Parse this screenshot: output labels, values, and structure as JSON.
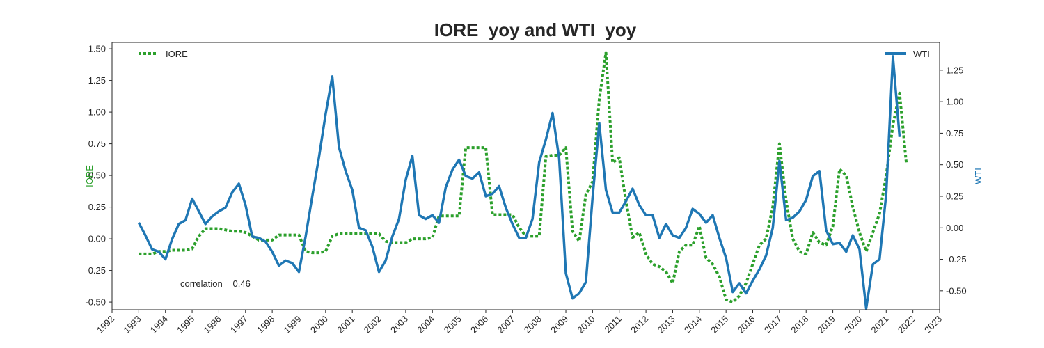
{
  "chart_data": {
    "type": "line",
    "title": "IORE_yoy and WTI_yoy",
    "x_ticks": [
      "1992",
      "1993",
      "1994",
      "1995",
      "1996",
      "1997",
      "1998",
      "1999",
      "2000",
      "2001",
      "2002",
      "2003",
      "2004",
      "2005",
      "2006",
      "2007",
      "2008",
      "2009",
      "2010",
      "2011",
      "2012",
      "2013",
      "2014",
      "2015",
      "2016",
      "2017",
      "2018",
      "2019",
      "2020",
      "2021",
      "2022",
      "2023"
    ],
    "xlim": [
      1992,
      2023
    ],
    "left_axis": {
      "label": "IORE",
      "ylim": [
        -0.56,
        1.55
      ],
      "ticks": [
        "-0.50",
        "-0.25",
        "0.00",
        "0.25",
        "0.50",
        "0.75",
        "1.00",
        "1.25",
        "1.50"
      ],
      "tick_values": [
        -0.5,
        -0.25,
        0,
        0.25,
        0.5,
        0.75,
        1.0,
        1.25,
        1.5
      ],
      "color": "#2ca02c"
    },
    "right_axis": {
      "label": "WTI",
      "ylim": [
        -0.65,
        1.47
      ],
      "ticks": [
        "-0.50",
        "-0.25",
        "0.00",
        "0.25",
        "0.50",
        "0.75",
        "1.00",
        "1.25"
      ],
      "tick_values": [
        -0.5,
        -0.25,
        0,
        0.25,
        0.5,
        0.75,
        1.0,
        1.25
      ],
      "color": "#1f77b4"
    },
    "legend_left": {
      "label": "IORE",
      "placement": "top-left"
    },
    "legend_right": {
      "label": "WTI",
      "placement": "top-right"
    },
    "annotation": "correlation = 0.46",
    "series": [
      {
        "name": "IORE",
        "axis": "left",
        "color": "#2ca02c",
        "style": "dotted",
        "points": [
          [
            1993.0,
            -0.12
          ],
          [
            1993.25,
            -0.12
          ],
          [
            1993.5,
            -0.12
          ],
          [
            1993.75,
            -0.1
          ],
          [
            1994.0,
            -0.1
          ],
          [
            1994.25,
            -0.09
          ],
          [
            1994.5,
            -0.09
          ],
          [
            1994.75,
            -0.09
          ],
          [
            1995.0,
            -0.08
          ],
          [
            1995.25,
            0.02
          ],
          [
            1995.5,
            0.08
          ],
          [
            1995.75,
            0.08
          ],
          [
            1996.0,
            0.08
          ],
          [
            1996.25,
            0.07
          ],
          [
            1996.5,
            0.06
          ],
          [
            1996.75,
            0.06
          ],
          [
            1997.0,
            0.05
          ],
          [
            1997.25,
            0.02
          ],
          [
            1997.5,
            -0.01
          ],
          [
            1997.75,
            -0.01
          ],
          [
            1998.0,
            -0.01
          ],
          [
            1998.25,
            0.03
          ],
          [
            1998.5,
            0.03
          ],
          [
            1998.75,
            0.03
          ],
          [
            1999.0,
            0.03
          ],
          [
            1999.25,
            -0.1
          ],
          [
            1999.5,
            -0.11
          ],
          [
            1999.75,
            -0.11
          ],
          [
            2000.0,
            -0.1
          ],
          [
            2000.25,
            0.02
          ],
          [
            2000.5,
            0.04
          ],
          [
            2000.75,
            0.04
          ],
          [
            2001.0,
            0.04
          ],
          [
            2001.25,
            0.04
          ],
          [
            2001.5,
            0.04
          ],
          [
            2001.75,
            0.04
          ],
          [
            2002.0,
            0.04
          ],
          [
            2002.25,
            -0.02
          ],
          [
            2002.5,
            -0.03
          ],
          [
            2002.75,
            -0.03
          ],
          [
            2003.0,
            -0.03
          ],
          [
            2003.25,
            0.0
          ],
          [
            2003.5,
            0.0
          ],
          [
            2003.75,
            0.0
          ],
          [
            2004.0,
            0.01
          ],
          [
            2004.25,
            0.18
          ],
          [
            2004.5,
            0.18
          ],
          [
            2004.75,
            0.18
          ],
          [
            2005.0,
            0.18
          ],
          [
            2005.25,
            0.72
          ],
          [
            2005.5,
            0.72
          ],
          [
            2005.75,
            0.72
          ],
          [
            2006.0,
            0.72
          ],
          [
            2006.25,
            0.19
          ],
          [
            2006.5,
            0.19
          ],
          [
            2006.75,
            0.19
          ],
          [
            2007.0,
            0.19
          ],
          [
            2007.25,
            0.09
          ],
          [
            2007.5,
            0.02
          ],
          [
            2007.75,
            0.02
          ],
          [
            2008.0,
            0.02
          ],
          [
            2008.25,
            0.65
          ],
          [
            2008.5,
            0.66
          ],
          [
            2008.75,
            0.66
          ],
          [
            2009.0,
            0.72
          ],
          [
            2009.25,
            0.06
          ],
          [
            2009.5,
            -0.02
          ],
          [
            2009.75,
            0.35
          ],
          [
            2010.0,
            0.45
          ],
          [
            2010.25,
            1.1
          ],
          [
            2010.5,
            1.47
          ],
          [
            2010.75,
            0.6
          ],
          [
            2011.0,
            0.64
          ],
          [
            2011.25,
            0.3
          ],
          [
            2011.5,
            0.01
          ],
          [
            2011.75,
            0.05
          ],
          [
            2012.0,
            -0.12
          ],
          [
            2012.25,
            -0.2
          ],
          [
            2012.5,
            -0.22
          ],
          [
            2012.75,
            -0.26
          ],
          [
            2013.0,
            -0.35
          ],
          [
            2013.25,
            -0.1
          ],
          [
            2013.5,
            -0.05
          ],
          [
            2013.75,
            -0.05
          ],
          [
            2014.0,
            0.1
          ],
          [
            2014.25,
            -0.15
          ],
          [
            2014.5,
            -0.2
          ],
          [
            2014.75,
            -0.3
          ],
          [
            2015.0,
            -0.48
          ],
          [
            2015.25,
            -0.5
          ],
          [
            2015.5,
            -0.45
          ],
          [
            2015.75,
            -0.35
          ],
          [
            2016.0,
            -0.2
          ],
          [
            2016.25,
            -0.05
          ],
          [
            2016.5,
            0.0
          ],
          [
            2016.75,
            0.25
          ],
          [
            2017.0,
            0.75
          ],
          [
            2017.25,
            0.3
          ],
          [
            2017.5,
            0.0
          ],
          [
            2017.75,
            -0.1
          ],
          [
            2018.0,
            -0.12
          ],
          [
            2018.25,
            0.05
          ],
          [
            2018.5,
            -0.03
          ],
          [
            2018.75,
            -0.05
          ],
          [
            2019.0,
            0.1
          ],
          [
            2019.25,
            0.55
          ],
          [
            2019.5,
            0.5
          ],
          [
            2019.75,
            0.25
          ],
          [
            2020.0,
            0.05
          ],
          [
            2020.25,
            -0.1
          ],
          [
            2020.5,
            0.05
          ],
          [
            2020.75,
            0.2
          ],
          [
            2021.0,
            0.5
          ],
          [
            2021.25,
            0.9
          ],
          [
            2021.5,
            1.15
          ],
          [
            2021.75,
            0.6
          ]
        ]
      },
      {
        "name": "WTI",
        "axis": "right",
        "color": "#1f77b4",
        "style": "solid",
        "points": [
          [
            1993.0,
            0.04
          ],
          [
            1993.25,
            -0.06
          ],
          [
            1993.5,
            -0.17
          ],
          [
            1993.75,
            -0.19
          ],
          [
            1994.0,
            -0.25
          ],
          [
            1994.25,
            -0.09
          ],
          [
            1994.5,
            0.03
          ],
          [
            1994.75,
            0.06
          ],
          [
            1995.0,
            0.23
          ],
          [
            1995.25,
            0.13
          ],
          [
            1995.5,
            0.03
          ],
          [
            1995.75,
            0.09
          ],
          [
            1996.0,
            0.13
          ],
          [
            1996.25,
            0.16
          ],
          [
            1996.5,
            0.28
          ],
          [
            1996.75,
            0.35
          ],
          [
            1997.0,
            0.18
          ],
          [
            1997.25,
            -0.07
          ],
          [
            1997.5,
            -0.08
          ],
          [
            1997.75,
            -0.11
          ],
          [
            1998.0,
            -0.19
          ],
          [
            1998.25,
            -0.3
          ],
          [
            1998.5,
            -0.26
          ],
          [
            1998.75,
            -0.28
          ],
          [
            1999.0,
            -0.35
          ],
          [
            1999.25,
            -0.07
          ],
          [
            1999.5,
            0.25
          ],
          [
            1999.75,
            0.56
          ],
          [
            2000.0,
            0.9
          ],
          [
            2000.25,
            1.2
          ],
          [
            2000.5,
            0.64
          ],
          [
            2000.75,
            0.45
          ],
          [
            2001.0,
            0.3
          ],
          [
            2001.25,
            0.0
          ],
          [
            2001.5,
            -0.02
          ],
          [
            2001.75,
            -0.15
          ],
          [
            2002.0,
            -0.35
          ],
          [
            2002.25,
            -0.26
          ],
          [
            2002.5,
            -0.07
          ],
          [
            2002.75,
            0.07
          ],
          [
            2003.0,
            0.38
          ],
          [
            2003.25,
            0.57
          ],
          [
            2003.5,
            0.1
          ],
          [
            2003.75,
            0.07
          ],
          [
            2004.0,
            0.1
          ],
          [
            2004.25,
            0.04
          ],
          [
            2004.5,
            0.32
          ],
          [
            2004.75,
            0.46
          ],
          [
            2005.0,
            0.54
          ],
          [
            2005.25,
            0.41
          ],
          [
            2005.5,
            0.39
          ],
          [
            2005.75,
            0.44
          ],
          [
            2006.0,
            0.25
          ],
          [
            2006.25,
            0.27
          ],
          [
            2006.5,
            0.33
          ],
          [
            2006.75,
            0.16
          ],
          [
            2007.0,
            0.03
          ],
          [
            2007.25,
            -0.08
          ],
          [
            2007.5,
            -0.08
          ],
          [
            2007.75,
            0.07
          ],
          [
            2008.0,
            0.52
          ],
          [
            2008.25,
            0.7
          ],
          [
            2008.5,
            0.91
          ],
          [
            2008.75,
            0.55
          ],
          [
            2009.0,
            -0.36
          ],
          [
            2009.25,
            -0.56
          ],
          [
            2009.5,
            -0.52
          ],
          [
            2009.75,
            -0.43
          ],
          [
            2010.0,
            0.24
          ],
          [
            2010.25,
            0.83
          ],
          [
            2010.5,
            0.3
          ],
          [
            2010.75,
            0.12
          ],
          [
            2011.0,
            0.12
          ],
          [
            2011.25,
            0.21
          ],
          [
            2011.5,
            0.31
          ],
          [
            2011.75,
            0.18
          ],
          [
            2012.0,
            0.1
          ],
          [
            2012.25,
            0.1
          ],
          [
            2012.5,
            -0.08
          ],
          [
            2012.75,
            0.03
          ],
          [
            2013.0,
            -0.06
          ],
          [
            2013.25,
            -0.08
          ],
          [
            2013.5,
            0.0
          ],
          [
            2013.75,
            0.15
          ],
          [
            2014.0,
            0.11
          ],
          [
            2014.25,
            0.04
          ],
          [
            2014.5,
            0.1
          ],
          [
            2014.75,
            -0.08
          ],
          [
            2015.0,
            -0.24
          ],
          [
            2015.25,
            -0.51
          ],
          [
            2015.5,
            -0.44
          ],
          [
            2015.75,
            -0.52
          ],
          [
            2016.0,
            -0.42
          ],
          [
            2016.25,
            -0.33
          ],
          [
            2016.5,
            -0.22
          ],
          [
            2016.75,
            0.0
          ],
          [
            2017.0,
            0.53
          ],
          [
            2017.25,
            0.06
          ],
          [
            2017.5,
            0.08
          ],
          [
            2017.75,
            0.13
          ],
          [
            2018.0,
            0.22
          ],
          [
            2018.25,
            0.41
          ],
          [
            2018.5,
            0.45
          ],
          [
            2018.75,
            -0.02
          ],
          [
            2019.0,
            -0.13
          ],
          [
            2019.25,
            -0.12
          ],
          [
            2019.5,
            -0.19
          ],
          [
            2019.75,
            -0.06
          ],
          [
            2020.0,
            -0.17
          ],
          [
            2020.25,
            -0.64
          ],
          [
            2020.5,
            -0.29
          ],
          [
            2020.75,
            -0.25
          ],
          [
            2021.0,
            0.27
          ],
          [
            2021.25,
            1.36
          ],
          [
            2021.5,
            0.72
          ]
        ]
      }
    ]
  }
}
